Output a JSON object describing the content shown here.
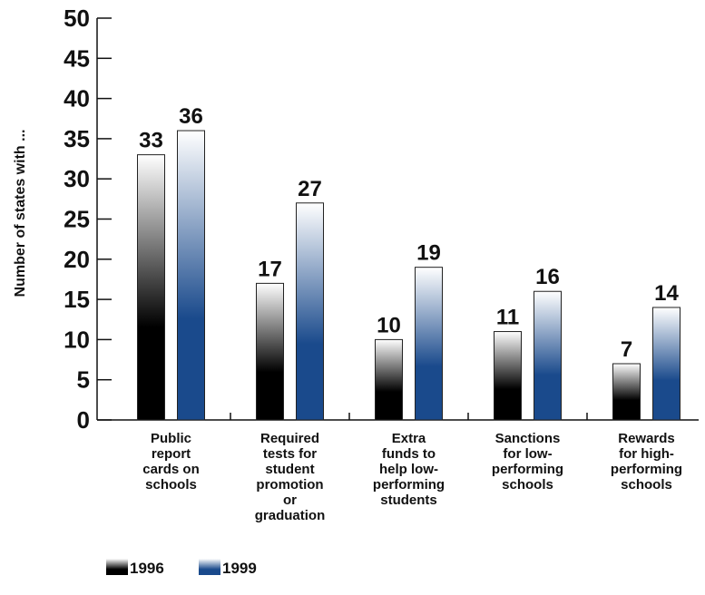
{
  "chart_data": {
    "type": "bar",
    "categories": [
      [
        "Public",
        "report",
        "cards on",
        "schools"
      ],
      [
        "Required",
        "tests for",
        "student",
        "promotion",
        "or",
        "graduation"
      ],
      [
        "Extra",
        "funds to",
        "help low-",
        "performing",
        "students"
      ],
      [
        "Sanctions",
        "for low-",
        "performing",
        "schools"
      ],
      [
        "Rewards",
        "for high-",
        "performing",
        "schools"
      ]
    ],
    "series": [
      {
        "name": "1996",
        "values": [
          33,
          17,
          10,
          11,
          7
        ],
        "color": "#000000",
        "color_top": "#ffffff"
      },
      {
        "name": "1999",
        "values": [
          36,
          27,
          19,
          16,
          14
        ],
        "color": "#1a4a8c",
        "color_top": "#ffffff"
      }
    ],
    "title": "",
    "xlabel": "",
    "ylabel": "Number of states with ...",
    "ylim": [
      0,
      50
    ],
    "yticks": [
      0,
      5,
      10,
      15,
      20,
      25,
      30,
      35,
      40,
      45,
      50
    ],
    "grid": false,
    "legend_position": "bottom-left",
    "show_data_labels": true
  }
}
